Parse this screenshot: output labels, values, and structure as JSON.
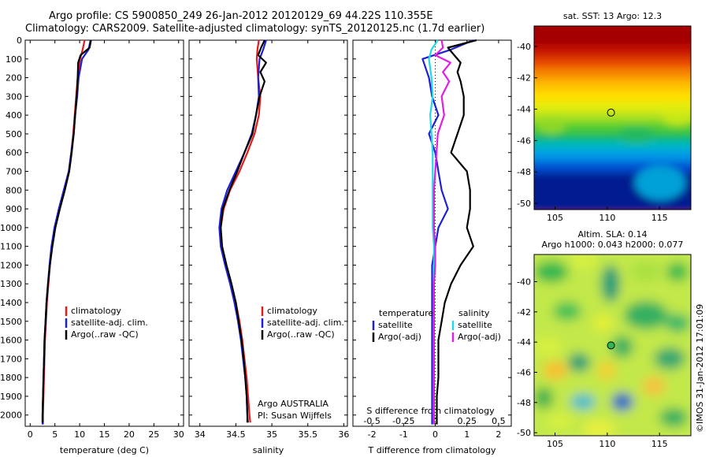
{
  "header": {
    "title_line1": "Argo profile: CS 5900850_249 26-Jan-2012 20120129_69 44.22S 110.355E",
    "title_line2": "Climatology: CARS2009. Satellite-adjusted climatology: synTS_20120125.nc (1.7d earlier)"
  },
  "footer": {
    "credit": "©IMOS 31-Jan-2012 17:01:09"
  },
  "maps": {
    "sst": {
      "title": "sat. SST: 13 Argo: 12.3",
      "x_ticks": [
        "105",
        "110",
        "115"
      ],
      "y_ticks": [
        "-40",
        "-42",
        "-44",
        "-46",
        "-48",
        "-50"
      ]
    },
    "sla": {
      "title_line1": "Altim. SLA: 0.14",
      "title_line2": "Argo h1000: 0.043 h2000: 0.077",
      "x_ticks": [
        "105",
        "110",
        "115"
      ],
      "y_ticks": [
        "-40",
        "-42",
        "-44",
        "-46",
        "-48",
        "-50"
      ]
    }
  },
  "colors": {
    "climatology": "#e41a1c",
    "satellite": "#1f1fd6",
    "argo": "#000000",
    "sal_satellite": "#22d8e8",
    "sal_argo": "#e020e0"
  },
  "chart_data": [
    {
      "type": "line",
      "name": "temperature",
      "xlabel": "temperature (deg C)",
      "ylabel": "",
      "xlim": [
        -1,
        31
      ],
      "ylim": [
        2060,
        0
      ],
      "x_ticks": [
        0,
        5,
        10,
        15,
        20,
        25,
        30
      ],
      "y_ticks": [
        0,
        100,
        200,
        300,
        400,
        500,
        600,
        700,
        800,
        900,
        1000,
        1100,
        1200,
        1300,
        1400,
        1500,
        1600,
        1700,
        1800,
        1900,
        2000
      ],
      "legend": [
        "climatology",
        "satellite-adj. clim.",
        "Argo(..raw -QC)"
      ],
      "legend_position": "lower-middle",
      "series": [
        {
          "name": "climatology",
          "color_key": "climatology",
          "depth": [
            0,
            50,
            100,
            200,
            300,
            400,
            500,
            600,
            700,
            800,
            900,
            1000,
            1100,
            1200,
            1300,
            1400,
            1500,
            1600,
            1700,
            1800,
            1900,
            2000,
            2050
          ],
          "values": [
            11.0,
            10.6,
            10.1,
            9.6,
            9.3,
            9.0,
            8.7,
            8.3,
            7.8,
            6.8,
            5.8,
            5.0,
            4.4,
            4.0,
            3.7,
            3.4,
            3.2,
            3.0,
            2.9,
            2.8,
            2.7,
            2.6,
            2.6
          ]
        },
        {
          "name": "satellite-adj. clim.",
          "color_key": "satellite",
          "depth": [
            0,
            50,
            100,
            200,
            300,
            400,
            500,
            600,
            700,
            800,
            900,
            1000,
            1100,
            1200,
            1300,
            1400,
            1500,
            1600,
            1700,
            1800,
            1900,
            2000,
            2050
          ],
          "values": [
            12.2,
            11.8,
            10.5,
            9.8,
            9.5,
            9.1,
            8.8,
            8.3,
            7.8,
            6.8,
            5.8,
            4.9,
            4.3,
            3.9,
            3.6,
            3.3,
            3.1,
            2.9,
            2.8,
            2.7,
            2.6,
            2.5,
            2.5
          ]
        },
        {
          "name": "Argo(..raw -QC)",
          "color_key": "argo",
          "depth": [
            0,
            40,
            80,
            120,
            200,
            300,
            400,
            500,
            600,
            700,
            800,
            900,
            1000,
            1100,
            1200,
            1300,
            1400,
            1500,
            1600,
            1700,
            1800,
            1900,
            2000,
            2040
          ],
          "values": [
            12.3,
            12.0,
            10.2,
            9.7,
            9.6,
            9.4,
            9.1,
            8.8,
            8.4,
            7.9,
            7.0,
            6.0,
            5.1,
            4.5,
            4.0,
            3.6,
            3.3,
            3.1,
            2.9,
            2.8,
            2.7,
            2.6,
            2.5,
            2.5
          ]
        }
      ]
    },
    {
      "type": "line",
      "name": "salinity",
      "xlabel": "salinity",
      "ylabel": "",
      "xlim": [
        33.85,
        36.05
      ],
      "ylim": [
        2060,
        0
      ],
      "x_ticks": [
        34,
        34.5,
        35,
        35.5,
        36
      ],
      "legend": [
        "climatology",
        "satellite-adj. clim.",
        "Argo(..raw -QC)"
      ],
      "legend_position": "lower-right",
      "annotation_line1": "Argo AUSTRALIA",
      "annotation_line2": "PI: Susan Wijffels",
      "series": [
        {
          "name": "climatology",
          "color_key": "climatology",
          "depth": [
            0,
            50,
            100,
            200,
            300,
            400,
            500,
            600,
            700,
            800,
            900,
            1000,
            1100,
            1200,
            1300,
            1400,
            1500,
            1600,
            1700,
            1800,
            1900,
            2000,
            2040
          ],
          "values": [
            34.82,
            34.8,
            34.79,
            34.81,
            34.84,
            34.82,
            34.76,
            34.66,
            34.55,
            34.42,
            34.33,
            34.29,
            34.3,
            34.36,
            34.43,
            34.5,
            34.55,
            34.59,
            34.62,
            34.65,
            34.67,
            34.69,
            34.7
          ]
        },
        {
          "name": "satellite-adj. clim.",
          "color_key": "satellite",
          "depth": [
            0,
            50,
            100,
            200,
            300,
            400,
            500,
            600,
            700,
            800,
            900,
            1000,
            1100,
            1200,
            1300,
            1400,
            1500,
            1600,
            1700,
            1800,
            1900,
            2000,
            2040
          ],
          "values": [
            34.92,
            34.88,
            34.83,
            34.81,
            34.82,
            34.78,
            34.72,
            34.62,
            34.5,
            34.38,
            34.3,
            34.27,
            34.29,
            34.35,
            34.42,
            34.48,
            34.53,
            34.57,
            34.6,
            34.63,
            34.65,
            34.66,
            34.67
          ]
        },
        {
          "name": "Argo(..raw -QC)",
          "color_key": "argo",
          "depth": [
            0,
            40,
            80,
            120,
            170,
            220,
            300,
            400,
            500,
            600,
            700,
            800,
            900,
            1000,
            1100,
            1200,
            1300,
            1400,
            1500,
            1600,
            1700,
            1800,
            1900,
            2000,
            2040
          ],
          "values": [
            34.9,
            34.85,
            34.81,
            34.92,
            34.84,
            34.9,
            34.83,
            34.78,
            34.73,
            34.62,
            34.52,
            34.41,
            34.32,
            34.29,
            34.31,
            34.37,
            34.44,
            34.5,
            34.54,
            34.58,
            34.61,
            34.63,
            34.65,
            34.66,
            34.66
          ]
        }
      ]
    },
    {
      "type": "line",
      "name": "differences",
      "xlabel": "T difference from climatology",
      "xlabel_top": "S difference from climatology",
      "xlim": [
        -2.6,
        2.4
      ],
      "ylim": [
        2060,
        0
      ],
      "x_ticks": [
        -2,
        -1,
        0,
        1,
        2
      ],
      "x_ticks_s": [
        "-0.5",
        "-0.25",
        "0",
        "0.25",
        "0.5"
      ],
      "legend_temperature_title": "temperature",
      "legend_salinity_title": "salinity",
      "legend_temperature": [
        "satellite",
        "Argo(-adj)"
      ],
      "legend_salinity": [
        "satellite",
        "Argo(-adj)"
      ],
      "series": [
        {
          "name": "temperature satellite",
          "color_key": "satellite",
          "depth": [
            0,
            50,
            100,
            200,
            300,
            400,
            500,
            600,
            700,
            800,
            900,
            1000,
            1100,
            1200,
            1300,
            1400,
            1500,
            1600,
            1700,
            1800,
            1900,
            2000,
            2050
          ],
          "values": [
            1.2,
            0.5,
            -0.4,
            -0.2,
            -0.1,
            0.1,
            -0.2,
            0.0,
            0.1,
            0.2,
            0.4,
            0.1,
            0.0,
            -0.1,
            -0.1,
            -0.1,
            -0.1,
            -0.1,
            -0.1,
            -0.1,
            -0.1,
            -0.1,
            -0.1
          ]
        },
        {
          "name": "temperature Argo(-adj)",
          "color_key": "argo",
          "depth": [
            0,
            40,
            80,
            120,
            170,
            220,
            300,
            400,
            500,
            600,
            700,
            800,
            900,
            1000,
            1100,
            1200,
            1300,
            1400,
            1500,
            1600,
            1700,
            1800,
            1900,
            2000,
            2050
          ],
          "values": [
            1.3,
            0.4,
            0.6,
            0.8,
            0.7,
            0.8,
            0.9,
            0.9,
            0.7,
            0.5,
            1.0,
            1.1,
            1.1,
            1.0,
            1.2,
            0.8,
            0.5,
            0.3,
            0.2,
            0.1,
            0.1,
            0.1,
            0.05,
            0.05,
            0.05
          ]
        },
        {
          "name": "salinity satellite",
          "color_key": "sal_satellite",
          "depth": [
            0,
            50,
            100,
            200,
            300,
            400,
            500,
            600,
            700,
            800,
            900,
            1000,
            1100,
            1200,
            1300,
            1400,
            1500,
            1600,
            1700,
            1800,
            1900,
            2000,
            2050
          ],
          "values": [
            0.02,
            -0.03,
            -0.05,
            -0.03,
            -0.02,
            -0.04,
            -0.03,
            -0.02,
            -0.02,
            -0.02,
            -0.02,
            -0.02,
            -0.01,
            -0.01,
            -0.01,
            -0.01,
            -0.01,
            -0.01,
            -0.01,
            -0.01,
            -0.01,
            -0.01,
            -0.01
          ]
        },
        {
          "name": "salinity Argo(-adj)",
          "color_key": "sal_argo",
          "depth": [
            0,
            40,
            80,
            120,
            170,
            220,
            300,
            400,
            500,
            600,
            700,
            800,
            900,
            1000,
            1100,
            1200,
            1300,
            1400,
            1500,
            1600,
            1700,
            1800,
            1900,
            2000,
            2050
          ],
          "values": [
            0.05,
            0.06,
            0.0,
            0.12,
            0.06,
            0.11,
            0.05,
            0.07,
            0.02,
            0.01,
            0.0,
            -0.01,
            -0.01,
            -0.01,
            0.0,
            0.0,
            -0.01,
            -0.01,
            -0.01,
            -0.01,
            -0.01,
            -0.01,
            -0.01,
            -0.01,
            -0.01
          ]
        }
      ]
    }
  ]
}
